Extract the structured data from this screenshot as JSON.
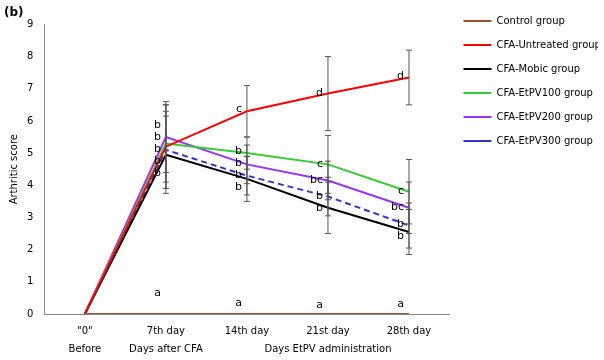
{
  "chart_data": {
    "type": "line",
    "title": "(b)",
    "y_label": "Arthritic score",
    "categories": [
      "\"0\"",
      "7th day",
      "14th day",
      "21st day",
      "28th day"
    ],
    "x_groups": [
      {
        "label": "Before",
        "categories": [
          "\"0\""
        ]
      },
      {
        "label": "Days after CFA",
        "categories": [
          "7th day"
        ]
      },
      {
        "label": "Days EtPV administration",
        "categories": [
          "14th day",
          "21st day",
          "28th day"
        ]
      }
    ],
    "ylim": [
      0,
      9
    ],
    "yticks": [
      0,
      1,
      2,
      3,
      4,
      5,
      6,
      7,
      8,
      9
    ],
    "grid": false,
    "legend": "right",
    "marker": "none",
    "series": [
      {
        "name": "Control group",
        "color": "#a0522d",
        "line_style": "solid",
        "values": [
          0,
          0,
          0,
          0,
          0
        ],
        "errors": [
          0,
          0,
          0,
          0,
          0
        ],
        "letters": [
          null,
          "a",
          "a",
          "a",
          "a"
        ]
      },
      {
        "name": "CFA-Untreated group",
        "color": "#ff0000",
        "line_style": "solid",
        "values": [
          0,
          5.2,
          6.3,
          6.85,
          7.35
        ],
        "errors": [
          0,
          1.3,
          0.8,
          1.15,
          0.85
        ],
        "letters": [
          null,
          "b",
          "c",
          "d",
          "d"
        ]
      },
      {
        "name": "CFA-Mobic group",
        "color": "#000000",
        "line_style": "solid",
        "values": [
          0,
          4.95,
          4.2,
          3.3,
          2.55
        ],
        "errors": [
          0,
          1.2,
          0.7,
          0.8,
          0.7
        ],
        "letters": [
          null,
          "b",
          "b",
          "b",
          "b"
        ]
      },
      {
        "name": "CFA-EtPV100 group",
        "color": "#33cc33",
        "line_style": "solid",
        "values": [
          0,
          5.3,
          5.0,
          4.65,
          3.8
        ],
        "errors": [
          0,
          1.2,
          0.5,
          0.9,
          1.0
        ],
        "letters": [
          null,
          "b",
          "b",
          "c",
          "c"
        ]
      },
      {
        "name": "CFA-EtPV200 group",
        "color": "#9933ff",
        "line_style": "solid",
        "values": [
          0,
          5.5,
          4.65,
          4.15,
          3.3
        ],
        "errors": [
          0,
          1.1,
          0.6,
          0.6,
          0.8
        ],
        "letters": [
          null,
          "b",
          "b",
          "bc",
          "bc"
        ]
      },
      {
        "name": "CFA-EtPV300 group",
        "color": "#3333cc",
        "line_style": "dashed",
        "values": [
          0,
          5.1,
          4.3,
          3.65,
          2.75
        ],
        "errors": [
          0,
          1.2,
          0.6,
          0.6,
          0.7
        ],
        "letters": [
          null,
          "b",
          "b",
          "b",
          "b"
        ]
      }
    ]
  }
}
